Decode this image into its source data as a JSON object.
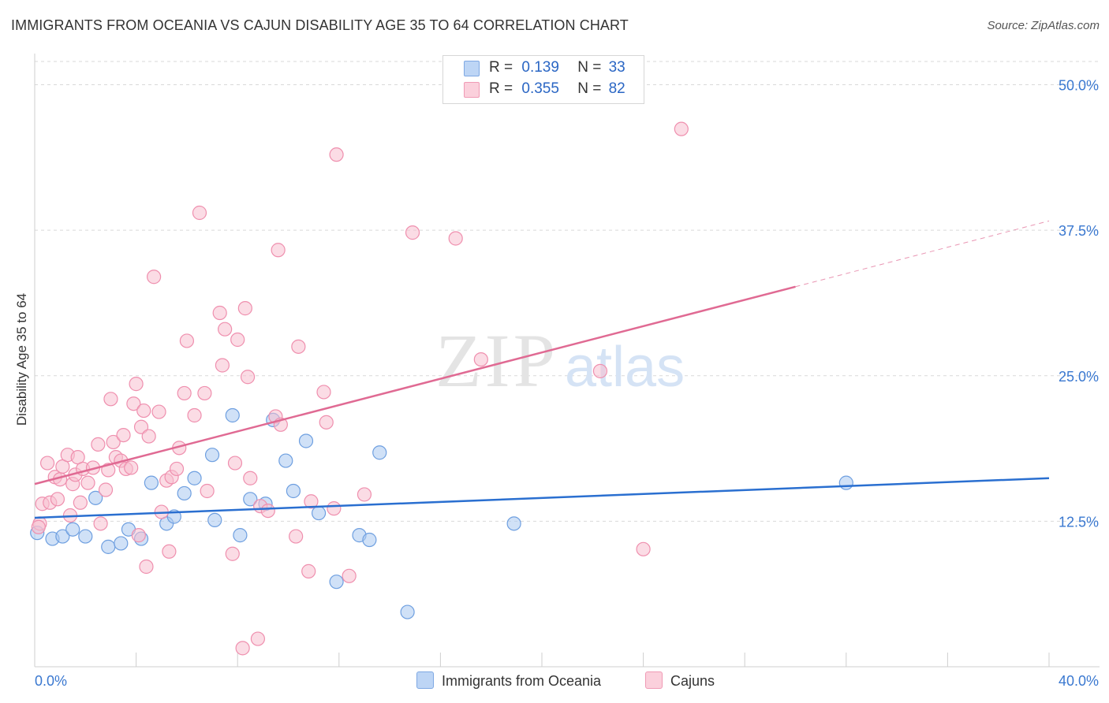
{
  "title": "IMMIGRANTS FROM OCEANIA VS CAJUN DISABILITY AGE 35 TO 64 CORRELATION CHART",
  "source": "Source: ZipAtlas.com",
  "watermark": {
    "zip": "ZIP",
    "atlas": "atlas"
  },
  "legend_top": [
    {
      "r_label": "R =",
      "r_value": "0.139",
      "n_label": "N =",
      "n_value": "33"
    },
    {
      "r_label": "R =",
      "r_value": "0.355",
      "n_label": "N =",
      "n_value": "82"
    }
  ],
  "colors": {
    "blue_fill": "#a9c8f0",
    "blue_stroke": "#6e9fe0",
    "blue_line": "#2a6fd0",
    "pink_fill": "#f8bfd0",
    "pink_stroke": "#ef8fae",
    "pink_line": "#e06a93",
    "tick_label": "#3a78d0",
    "grid": "#d9d9d9"
  },
  "chart_data": {
    "type": "scatter",
    "title": "IMMIGRANTS FROM OCEANIA VS CAJUN DISABILITY AGE 35 TO 64 CORRELATION CHART",
    "xlabel": "",
    "ylabel": "Disability Age 35 to 64",
    "xlim": [
      0,
      40
    ],
    "ylim": [
      0,
      52
    ],
    "x_tick_labels": [
      "0.0%",
      "40.0%"
    ],
    "y_ticks": [
      12.5,
      25.0,
      37.5,
      50.0
    ],
    "y_tick_labels": [
      "12.5%",
      "25.0%",
      "37.5%",
      "50.0%"
    ],
    "series": [
      {
        "name": "Immigrants from Oceania",
        "color": "blue",
        "trend": {
          "x0": 0,
          "y0": 12.8,
          "x1": 40,
          "y1": 16.2,
          "dashed_from": null
        },
        "points": [
          [
            0.1,
            11.5
          ],
          [
            0.7,
            11.0
          ],
          [
            1.1,
            11.2
          ],
          [
            1.5,
            11.8
          ],
          [
            2.0,
            11.2
          ],
          [
            2.4,
            14.5
          ],
          [
            2.9,
            10.3
          ],
          [
            3.4,
            10.6
          ],
          [
            3.7,
            11.8
          ],
          [
            4.2,
            11.0
          ],
          [
            4.6,
            15.8
          ],
          [
            5.2,
            12.3
          ],
          [
            5.5,
            12.9
          ],
          [
            5.9,
            14.9
          ],
          [
            6.3,
            16.2
          ],
          [
            7.0,
            18.2
          ],
          [
            7.1,
            12.6
          ],
          [
            7.8,
            21.6
          ],
          [
            8.1,
            11.3
          ],
          [
            8.5,
            14.4
          ],
          [
            9.1,
            14.0
          ],
          [
            9.4,
            21.2
          ],
          [
            9.9,
            17.7
          ],
          [
            10.2,
            15.1
          ],
          [
            10.7,
            19.4
          ],
          [
            11.2,
            13.2
          ],
          [
            11.9,
            7.3
          ],
          [
            12.8,
            11.3
          ],
          [
            13.2,
            10.9
          ],
          [
            13.6,
            18.4
          ],
          [
            14.7,
            4.7
          ],
          [
            18.9,
            12.3
          ],
          [
            32.0,
            15.8
          ]
        ]
      },
      {
        "name": "Cajuns",
        "color": "pink",
        "trend": {
          "x0": 0,
          "y0": 15.7,
          "x1": 40,
          "y1": 38.3,
          "dashed_from": 30.0
        },
        "points": [
          [
            0.2,
            12.3
          ],
          [
            0.3,
            14.0
          ],
          [
            0.5,
            17.5
          ],
          [
            0.6,
            14.1
          ],
          [
            0.8,
            16.3
          ],
          [
            0.9,
            14.4
          ],
          [
            1.0,
            16.1
          ],
          [
            1.1,
            17.2
          ],
          [
            1.3,
            18.2
          ],
          [
            1.4,
            13.0
          ],
          [
            1.5,
            15.7
          ],
          [
            1.6,
            16.5
          ],
          [
            1.7,
            18.0
          ],
          [
            1.8,
            14.1
          ],
          [
            1.9,
            17.0
          ],
          [
            2.1,
            15.8
          ],
          [
            2.3,
            17.1
          ],
          [
            2.5,
            19.1
          ],
          [
            2.6,
            12.3
          ],
          [
            2.8,
            15.2
          ],
          [
            2.9,
            16.9
          ],
          [
            3.0,
            23.0
          ],
          [
            3.1,
            19.3
          ],
          [
            3.2,
            18.0
          ],
          [
            3.4,
            17.7
          ],
          [
            3.5,
            19.9
          ],
          [
            3.6,
            17.0
          ],
          [
            3.8,
            17.1
          ],
          [
            3.9,
            22.6
          ],
          [
            4.0,
            24.3
          ],
          [
            4.1,
            11.3
          ],
          [
            4.2,
            20.6
          ],
          [
            4.3,
            22.0
          ],
          [
            4.4,
            8.6
          ],
          [
            4.5,
            19.8
          ],
          [
            4.7,
            33.5
          ],
          [
            4.9,
            21.9
          ],
          [
            5.0,
            13.3
          ],
          [
            5.2,
            16.0
          ],
          [
            5.3,
            9.9
          ],
          [
            5.4,
            16.3
          ],
          [
            5.6,
            17.0
          ],
          [
            5.7,
            18.8
          ],
          [
            5.9,
            23.5
          ],
          [
            6.0,
            28.0
          ],
          [
            6.3,
            21.6
          ],
          [
            6.5,
            39.0
          ],
          [
            6.7,
            23.5
          ],
          [
            6.8,
            15.1
          ],
          [
            7.3,
            30.4
          ],
          [
            7.4,
            25.9
          ],
          [
            7.5,
            29.0
          ],
          [
            7.8,
            9.7
          ],
          [
            7.9,
            17.5
          ],
          [
            8.0,
            28.1
          ],
          [
            8.2,
            1.6
          ],
          [
            8.3,
            30.8
          ],
          [
            8.4,
            24.9
          ],
          [
            8.5,
            16.2
          ],
          [
            8.8,
            2.4
          ],
          [
            8.9,
            13.8
          ],
          [
            9.2,
            13.4
          ],
          [
            9.5,
            21.5
          ],
          [
            9.6,
            35.8
          ],
          [
            9.7,
            20.8
          ],
          [
            10.3,
            11.2
          ],
          [
            10.4,
            27.5
          ],
          [
            10.8,
            8.2
          ],
          [
            10.9,
            14.2
          ],
          [
            11.4,
            23.6
          ],
          [
            11.5,
            21.0
          ],
          [
            11.8,
            13.6
          ],
          [
            11.9,
            44.0
          ],
          [
            12.4,
            7.8
          ],
          [
            13.0,
            14.8
          ],
          [
            14.9,
            37.3
          ],
          [
            16.6,
            36.8
          ],
          [
            17.6,
            26.4
          ],
          [
            22.3,
            25.4
          ],
          [
            24.0,
            10.1
          ],
          [
            25.5,
            46.2
          ],
          [
            0.15,
            12.0
          ]
        ]
      }
    ]
  },
  "bottom_legend": [
    {
      "label": "Immigrants from Oceania",
      "color": "blue"
    },
    {
      "label": "Cajuns",
      "color": "pink"
    }
  ]
}
